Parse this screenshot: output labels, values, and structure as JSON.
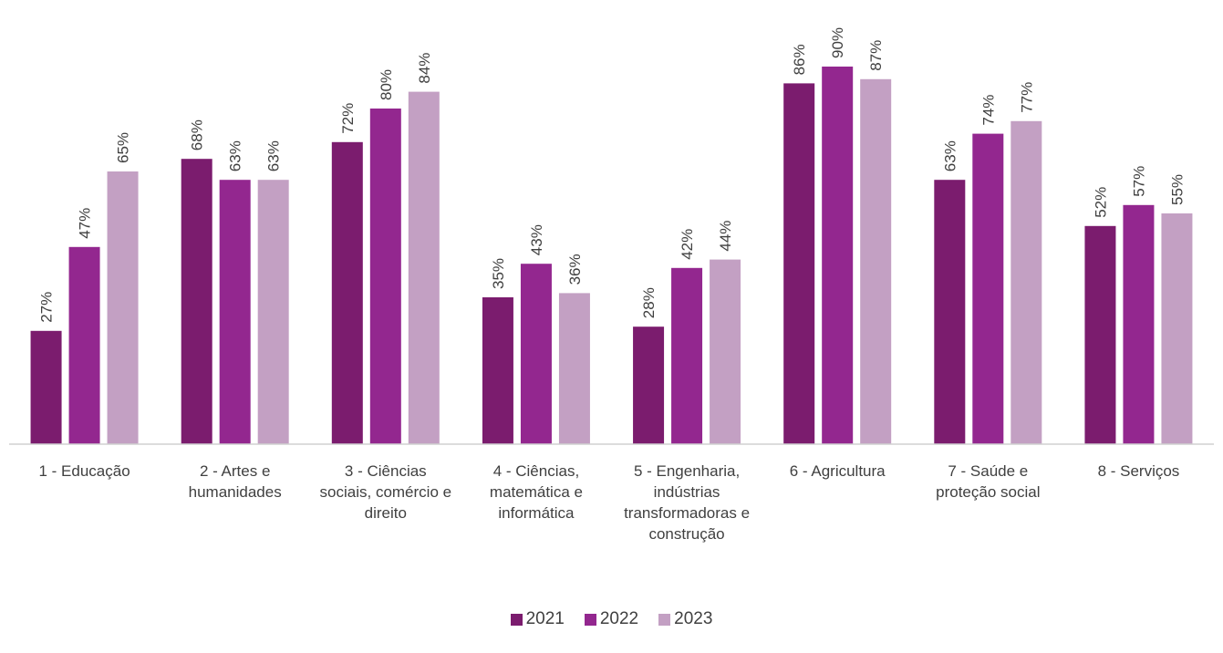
{
  "chart_data": {
    "type": "bar",
    "categories": [
      [
        "1 - Educação"
      ],
      [
        "2 - Artes e",
        "humanidades"
      ],
      [
        "3 - Ciências",
        "sociais, comércio e",
        "direito"
      ],
      [
        "4 - Ciências,",
        "matemática e",
        "informática"
      ],
      [
        "5 - Engenharia,",
        "indústrias",
        "transformadoras e",
        "construção"
      ],
      [
        "6 - Agricultura"
      ],
      [
        "7 - Saúde e",
        "proteção social"
      ],
      [
        "8 - Serviços"
      ]
    ],
    "series": [
      {
        "name": "2021",
        "color": "#7B1C6E",
        "values": [
          27,
          68,
          72,
          35,
          28,
          86,
          63,
          52
        ],
        "labels": [
          "27%",
          "68%",
          "72%",
          "35%",
          "28%",
          "86%",
          "63%",
          "52%"
        ]
      },
      {
        "name": "2022",
        "color": "#93278F",
        "values": [
          47,
          63,
          80,
          43,
          42,
          90,
          74,
          57
        ],
        "labels": [
          "47%",
          "63%",
          "80%",
          "43%",
          "42%",
          "90%",
          "74%",
          "57%"
        ]
      },
      {
        "name": "2023",
        "color": "#C3A0C3",
        "values": [
          65,
          63,
          84,
          36,
          44,
          87,
          77,
          55
        ],
        "labels": [
          "65%",
          "63%",
          "84%",
          "36%",
          "44%",
          "87%",
          "77%",
          "55%"
        ]
      }
    ],
    "ylim": [
      0,
      100
    ],
    "grid": false,
    "legend": "bottom",
    "value_format": "percent"
  }
}
